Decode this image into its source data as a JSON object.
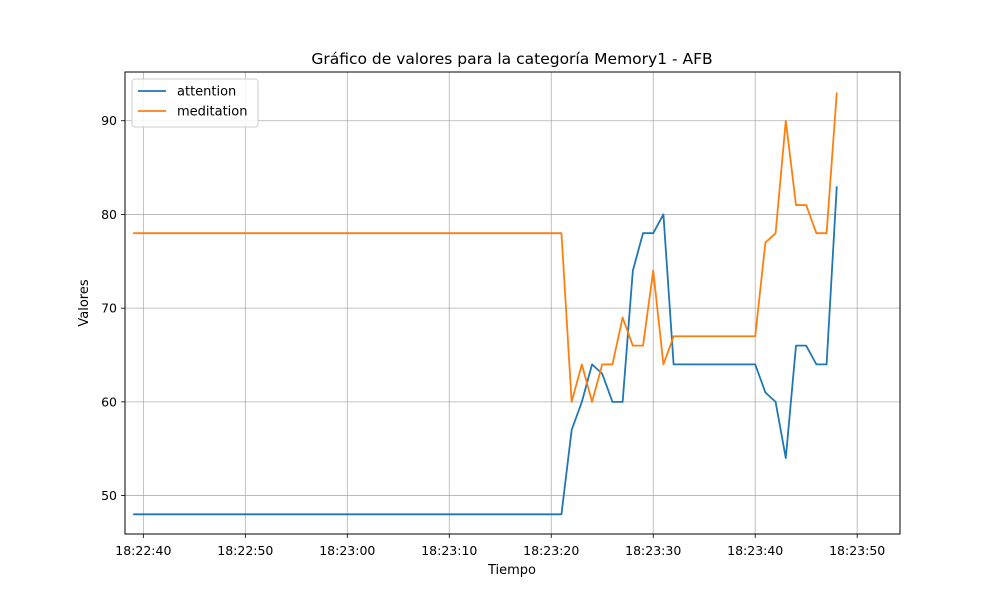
{
  "chart_data": {
    "type": "line",
    "title": "Gráfico de valores para la categoría Memory1 - AFB",
    "xlabel": "Tiempo",
    "ylabel": "Valores",
    "x_unit": "seconds after 18:22:30",
    "xlim": [
      8.2,
      84.2
    ],
    "ylim": [
      45.9,
      95.2
    ],
    "x_ticks": [
      10,
      20,
      30,
      40,
      50,
      60,
      70,
      80
    ],
    "x_tick_labels": [
      "18:22:40",
      "18:22:50",
      "18:23:00",
      "18:23:10",
      "18:23:20",
      "18:23:30",
      "18:23:40",
      "18:23:50"
    ],
    "y_ticks": [
      50,
      60,
      70,
      80,
      90
    ],
    "y_tick_labels": [
      "50",
      "60",
      "70",
      "80",
      "90"
    ],
    "grid": true,
    "legend": "top-left",
    "series": [
      {
        "name": "attention",
        "color": "#1f77b4",
        "points": [
          [
            9,
            48
          ],
          [
            51,
            48
          ],
          [
            52,
            57
          ],
          [
            53,
            60
          ],
          [
            54,
            64
          ],
          [
            55,
            63
          ],
          [
            56,
            60
          ],
          [
            57,
            60
          ],
          [
            58,
            74
          ],
          [
            59,
            78
          ],
          [
            60,
            78
          ],
          [
            61,
            80
          ],
          [
            62,
            64
          ],
          [
            63,
            64
          ],
          [
            64,
            64
          ],
          [
            65,
            64
          ],
          [
            66,
            64
          ],
          [
            67,
            64
          ],
          [
            68,
            64
          ],
          [
            69,
            64
          ],
          [
            70,
            64
          ],
          [
            71,
            61
          ],
          [
            72,
            60
          ],
          [
            73,
            54
          ],
          [
            74,
            66
          ],
          [
            75,
            66
          ],
          [
            76,
            64
          ],
          [
            77,
            64
          ],
          [
            78,
            83
          ]
        ]
      },
      {
        "name": "meditation",
        "color": "#ff7f0e",
        "points": [
          [
            9,
            78
          ],
          [
            51,
            78
          ],
          [
            52,
            60
          ],
          [
            53,
            64
          ],
          [
            54,
            60
          ],
          [
            55,
            64
          ],
          [
            56,
            64
          ],
          [
            57,
            69
          ],
          [
            58,
            66
          ],
          [
            59,
            66
          ],
          [
            60,
            74
          ],
          [
            61,
            64
          ],
          [
            62,
            67
          ],
          [
            63,
            67
          ],
          [
            64,
            67
          ],
          [
            65,
            67
          ],
          [
            66,
            67
          ],
          [
            67,
            67
          ],
          [
            68,
            67
          ],
          [
            69,
            67
          ],
          [
            70,
            67
          ],
          [
            71,
            77
          ],
          [
            72,
            78
          ],
          [
            73,
            90
          ],
          [
            74,
            81
          ],
          [
            75,
            81
          ],
          [
            76,
            78
          ],
          [
            77,
            78
          ],
          [
            78,
            93
          ]
        ]
      }
    ]
  }
}
